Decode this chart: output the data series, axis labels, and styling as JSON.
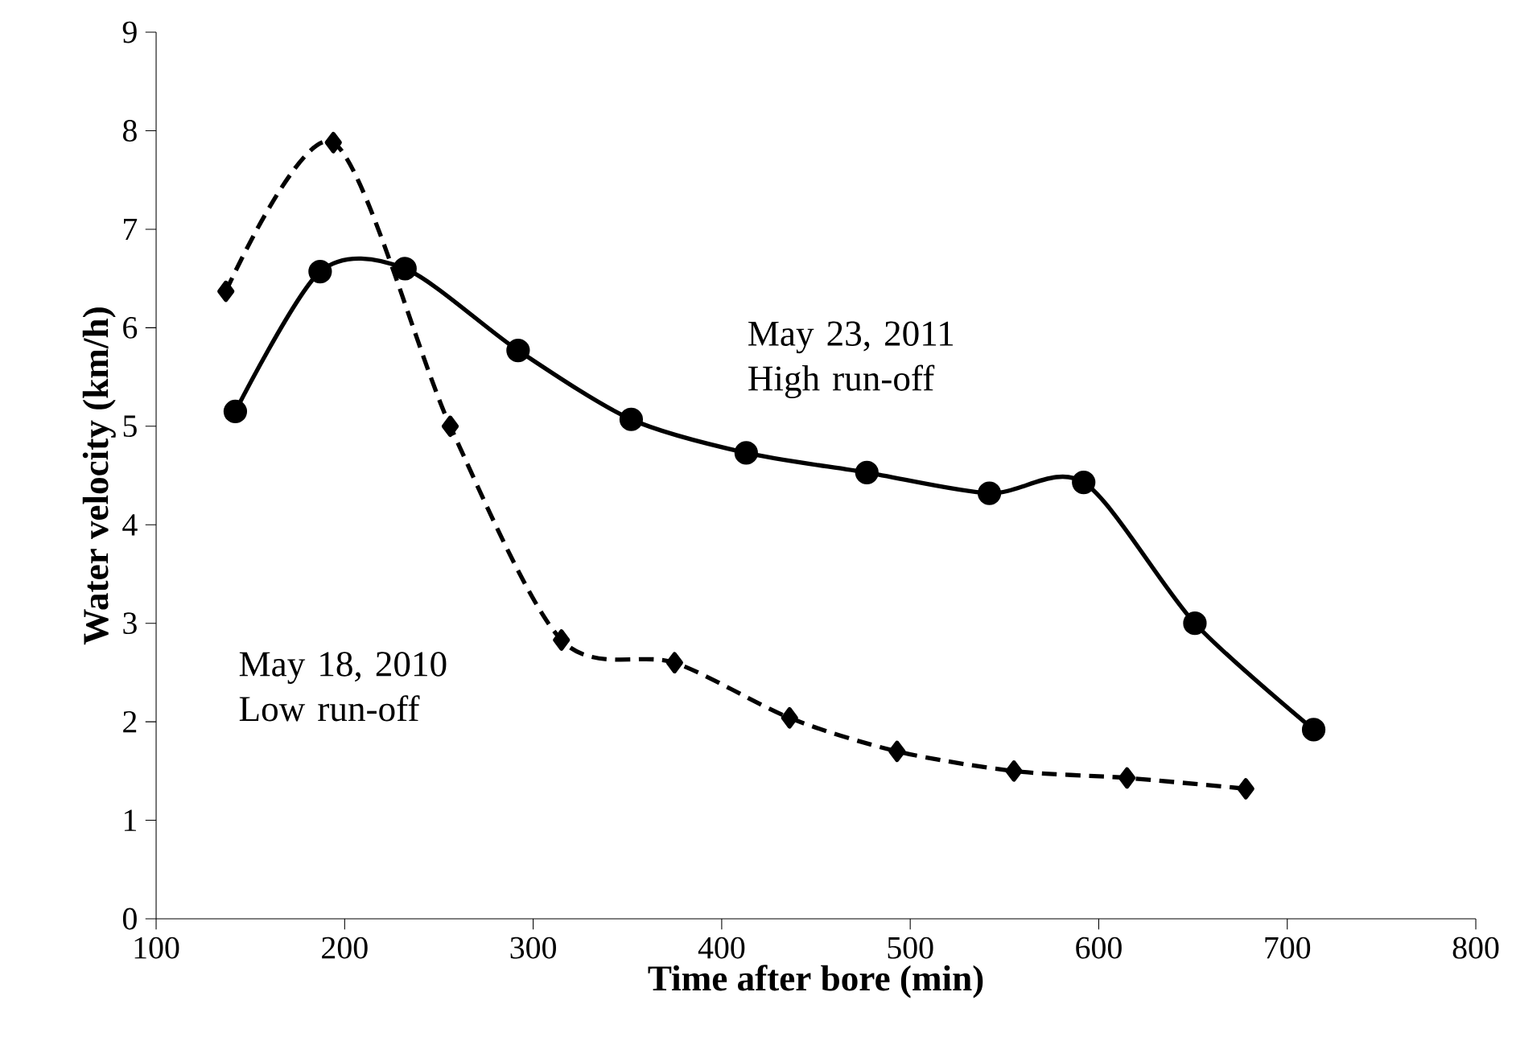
{
  "chart_data": {
    "type": "line",
    "xlabel": "Time after bore (min)",
    "ylabel": "Water velocity (km/h)",
    "xlim": [
      100,
      800
    ],
    "xticks": [
      100,
      200,
      300,
      400,
      500,
      600,
      700,
      800
    ],
    "ylim": [
      0,
      9
    ],
    "yticks": [
      0,
      1,
      2,
      3,
      4,
      5,
      6,
      7,
      8,
      9
    ],
    "grid": false,
    "legend": false,
    "series": [
      {
        "name": "May 23, 2011 High run-off",
        "color": "#000000",
        "marker": "circle",
        "line_style": "solid",
        "x": [
          142,
          187,
          232,
          292,
          352,
          413,
          477,
          542,
          592,
          651,
          714
        ],
        "values": [
          5.15,
          6.57,
          6.6,
          5.77,
          5.07,
          4.73,
          4.53,
          4.32,
          4.43,
          3.0,
          1.92
        ]
      },
      {
        "name": "May 18, 2010 Low run-off",
        "color": "#000000",
        "marker": "diamond",
        "line_style": "dashed",
        "x": [
          137,
          194,
          256,
          315,
          375,
          436,
          493,
          555,
          615,
          678
        ],
        "values": [
          6.37,
          7.88,
          5.0,
          2.83,
          2.6,
          2.04,
          1.7,
          1.5,
          1.43,
          1.32
        ]
      }
    ]
  }
}
